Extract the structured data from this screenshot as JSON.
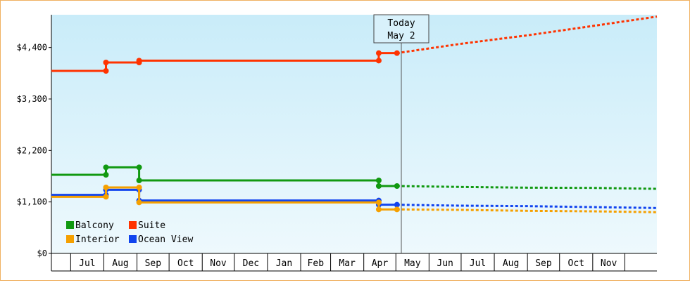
{
  "chart_data": {
    "type": "line",
    "y_tick_labels": [
      "$0",
      "$1,100",
      "$2,200",
      "$3,300",
      "$4,400"
    ],
    "y_tick_values": [
      0,
      1100,
      2200,
      3300,
      4400
    ],
    "ylim": [
      0,
      5100
    ],
    "x_months": [
      "Jul",
      "Aug",
      "Sep",
      "Oct",
      "Nov",
      "Dec",
      "Jan",
      "Feb",
      "Mar",
      "Apr",
      "May",
      "Jun",
      "Jul",
      "Aug",
      "Sep",
      "Oct",
      "Nov"
    ],
    "x_month_start": "2025-06-13",
    "today_label_line1": "Today",
    "today_label_line2": "May 2",
    "today_date": "2026-05-02",
    "grid": false,
    "legend_position": "bottom-left",
    "series": [
      {
        "name": "Suite",
        "color": "#ff3300",
        "history": [
          [
            "2025-06-13",
            3900
          ],
          [
            "2025-08-03",
            3900
          ],
          [
            "2025-08-03",
            4080
          ],
          [
            "2025-09-03",
            4080
          ],
          [
            "2025-09-03",
            4120
          ],
          [
            "2026-04-15",
            4120
          ],
          [
            "2026-04-15",
            4280
          ],
          [
            "2026-05-02",
            4280
          ]
        ],
        "forecast": [
          [
            "2026-05-02",
            4280
          ],
          [
            "2026-07-01",
            4480
          ],
          [
            "2026-09-01",
            4660
          ],
          [
            "2026-11-01",
            4860
          ],
          [
            "2026-12-31",
            5060
          ]
        ]
      },
      {
        "name": "Balcony",
        "color": "#119911",
        "history": [
          [
            "2025-06-13",
            1680
          ],
          [
            "2025-08-03",
            1680
          ],
          [
            "2025-08-03",
            1840
          ],
          [
            "2025-09-03",
            1840
          ],
          [
            "2025-09-03",
            1560
          ],
          [
            "2026-04-15",
            1560
          ],
          [
            "2026-04-15",
            1440
          ],
          [
            "2026-05-02",
            1440
          ]
        ],
        "forecast": [
          [
            "2026-05-02",
            1440
          ],
          [
            "2026-07-01",
            1420
          ],
          [
            "2026-09-01",
            1405
          ],
          [
            "2026-11-01",
            1400
          ],
          [
            "2026-12-31",
            1380
          ]
        ]
      },
      {
        "name": "Ocean View",
        "color": "#1144ee",
        "history": [
          [
            "2025-06-13",
            1250
          ],
          [
            "2025-08-03",
            1250
          ],
          [
            "2025-08-03",
            1360
          ],
          [
            "2025-09-03",
            1360
          ],
          [
            "2025-09-03",
            1130
          ],
          [
            "2026-04-15",
            1130
          ],
          [
            "2026-04-15",
            1040
          ],
          [
            "2026-05-02",
            1040
          ]
        ],
        "forecast": [
          [
            "2026-05-02",
            1040
          ],
          [
            "2026-07-01",
            1020
          ],
          [
            "2026-09-01",
            1010
          ],
          [
            "2026-11-01",
            990
          ],
          [
            "2026-12-31",
            970
          ]
        ]
      },
      {
        "name": "Interior",
        "color": "#f5a000",
        "history": [
          [
            "2025-06-13",
            1210
          ],
          [
            "2025-08-03",
            1210
          ],
          [
            "2025-08-03",
            1410
          ],
          [
            "2025-09-03",
            1410
          ],
          [
            "2025-09-03",
            1090
          ],
          [
            "2026-04-15",
            1090
          ],
          [
            "2026-04-15",
            940
          ],
          [
            "2026-05-02",
            940
          ]
        ],
        "forecast": [
          [
            "2026-05-02",
            940
          ],
          [
            "2026-07-01",
            930
          ],
          [
            "2026-09-01",
            910
          ],
          [
            "2026-11-01",
            900
          ],
          [
            "2026-12-31",
            880
          ]
        ]
      }
    ],
    "legend": [
      {
        "label": "Balcony",
        "color": "#119911"
      },
      {
        "label": "Suite",
        "color": "#ff3300"
      },
      {
        "label": "Interior",
        "color": "#f5a000"
      },
      {
        "label": "Ocean View",
        "color": "#1144ee"
      }
    ]
  }
}
